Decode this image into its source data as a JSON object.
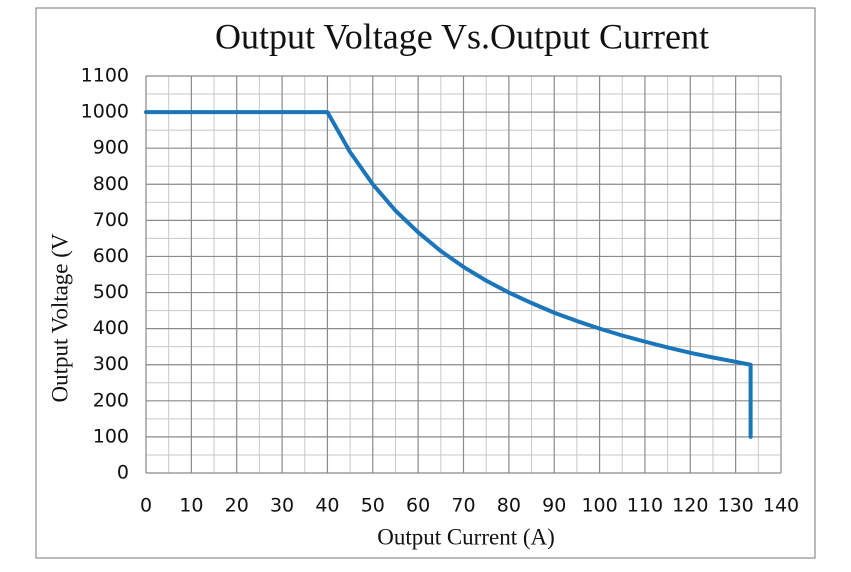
{
  "chart_data": {
    "type": "line",
    "title": "Output Voltage Vs.Output Current",
    "xlabel": "Output Current (A)",
    "ylabel": "Output Voltage (V",
    "x": [
      0,
      40,
      45,
      50,
      55,
      60,
      65,
      70,
      75,
      80,
      85,
      90,
      95,
      100,
      105,
      110,
      115,
      120,
      125,
      130,
      133.3,
      133.3
    ],
    "series": [
      {
        "color": "#1b75bb",
        "values": [
          1000,
          1000,
          889,
          800,
          727,
          667,
          615,
          571,
          533,
          500,
          471,
          444,
          421,
          400,
          381,
          364,
          348,
          333,
          320,
          308,
          300,
          100
        ]
      }
    ],
    "xlim": [
      0,
      140
    ],
    "xticks": [
      0,
      10,
      20,
      30,
      40,
      50,
      60,
      70,
      80,
      90,
      100,
      110,
      120,
      130,
      140
    ],
    "ylim": [
      0,
      1100
    ],
    "yticks": [
      0,
      100,
      200,
      300,
      400,
      500,
      600,
      700,
      800,
      900,
      1000,
      1100
    ],
    "grid": true
  }
}
